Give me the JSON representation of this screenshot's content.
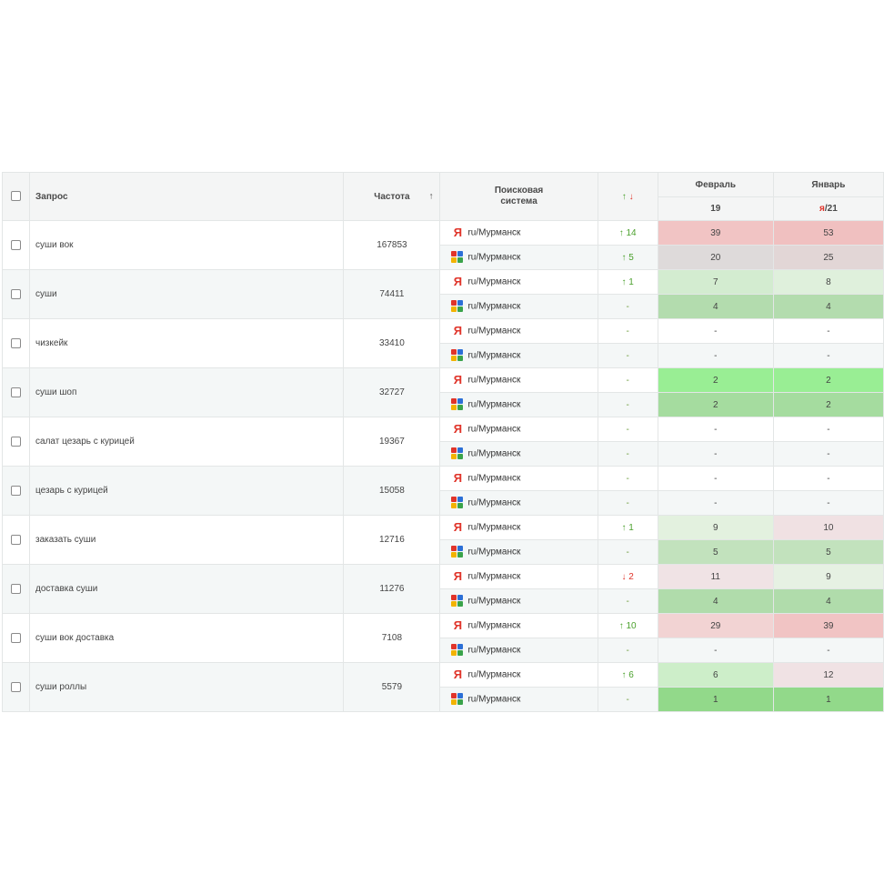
{
  "header": {
    "query": "Запрос",
    "frequency": "Частота",
    "sort_arrow": "↑",
    "search_engine_line1": "Поисковая",
    "search_engine_line2": "система",
    "dyn_up": "↑",
    "dyn_down": "↓",
    "month_feb": "Февраль",
    "month_jan": "Январь",
    "feb_day": "19",
    "jan_mark": "я",
    "jan_day": "/21"
  },
  "colors": {
    "positive": "#4aa02c",
    "negative": "#e0342a",
    "yandex": "#e0342a"
  },
  "rows": [
    {
      "query": "суши вок",
      "freq": "167853",
      "engines": [
        {
          "logo": "yandex-icon",
          "region": "ru/Мурманск",
          "dir": "up",
          "change": "14",
          "feb": "39",
          "jan": "53",
          "feb_bg": "#f1c4c4",
          "jan_bg": "#f0c0c0"
        },
        {
          "logo": "google-icon",
          "region": "ru/Мурманск",
          "dir": "up",
          "change": "5",
          "feb": "20",
          "jan": "25",
          "feb_bg": "#dedada",
          "jan_bg": "#e2d6d6"
        }
      ]
    },
    {
      "query": "суши",
      "freq": "74411",
      "engines": [
        {
          "logo": "yandex-icon",
          "region": "ru/Мурманск",
          "dir": "up",
          "change": "1",
          "feb": "7",
          "jan": "8",
          "feb_bg": "#d3ecd0",
          "jan_bg": "#dff0dc"
        },
        {
          "logo": "google-icon",
          "region": "ru/Мурманск",
          "dir": "none",
          "change": "-",
          "feb": "4",
          "jan": "4",
          "feb_bg": "#b3dcae",
          "jan_bg": "#b3dcae"
        }
      ]
    },
    {
      "query": "чизкейк",
      "freq": "33410",
      "engines": [
        {
          "logo": "yandex-icon",
          "region": "ru/Мурманск",
          "dir": "none",
          "change": "-",
          "feb": "-",
          "jan": "-",
          "feb_bg": "",
          "jan_bg": ""
        },
        {
          "logo": "google-icon",
          "region": "ru/Мурманск",
          "dir": "none",
          "change": "-",
          "feb": "-",
          "jan": "-",
          "feb_bg": "",
          "jan_bg": ""
        }
      ]
    },
    {
      "query": "суши шоп",
      "freq": "32727",
      "engines": [
        {
          "logo": "yandex-icon",
          "region": "ru/Мурманск",
          "dir": "none",
          "change": "-",
          "feb": "2",
          "jan": "2",
          "feb_bg": "#99ee94",
          "jan_bg": "#99ee94"
        },
        {
          "logo": "google-icon",
          "region": "ru/Мурманск",
          "dir": "none",
          "change": "-",
          "feb": "2",
          "jan": "2",
          "feb_bg": "#a5dc9f",
          "jan_bg": "#a5dc9f"
        }
      ]
    },
    {
      "query": "салат цезарь с курицей",
      "freq": "19367",
      "engines": [
        {
          "logo": "yandex-icon",
          "region": "ru/Мурманск",
          "dir": "none",
          "change": "-",
          "feb": "-",
          "jan": "-",
          "feb_bg": "",
          "jan_bg": ""
        },
        {
          "logo": "google-icon",
          "region": "ru/Мурманск",
          "dir": "none",
          "change": "-",
          "feb": "-",
          "jan": "-",
          "feb_bg": "",
          "jan_bg": ""
        }
      ]
    },
    {
      "query": "цезарь с курицей",
      "freq": "15058",
      "engines": [
        {
          "logo": "yandex-icon",
          "region": "ru/Мурманск",
          "dir": "none",
          "change": "-",
          "feb": "-",
          "jan": "-",
          "feb_bg": "",
          "jan_bg": ""
        },
        {
          "logo": "google-icon",
          "region": "ru/Мурманск",
          "dir": "none",
          "change": "-",
          "feb": "-",
          "jan": "-",
          "feb_bg": "",
          "jan_bg": ""
        }
      ]
    },
    {
      "query": "заказать суши",
      "freq": "12716",
      "engines": [
        {
          "logo": "yandex-icon",
          "region": "ru/Мурманск",
          "dir": "up",
          "change": "1",
          "feb": "9",
          "jan": "10",
          "feb_bg": "#e3f1df",
          "jan_bg": "#f0e1e3"
        },
        {
          "logo": "google-icon",
          "region": "ru/Мурманск",
          "dir": "none",
          "change": "-",
          "feb": "5",
          "jan": "5",
          "feb_bg": "#c2e2bd",
          "jan_bg": "#c2e2bd"
        }
      ]
    },
    {
      "query": "доставка суши",
      "freq": "11276",
      "engines": [
        {
          "logo": "yandex-icon",
          "region": "ru/Мурманск",
          "dir": "down",
          "change": "2",
          "feb": "11",
          "jan": "9",
          "feb_bg": "#f0e3e5",
          "jan_bg": "#e6f1e3"
        },
        {
          "logo": "google-icon",
          "region": "ru/Мурманск",
          "dir": "none",
          "change": "-",
          "feb": "4",
          "jan": "4",
          "feb_bg": "#b0dcab",
          "jan_bg": "#b0dcab"
        }
      ]
    },
    {
      "query": "суши вок доставка",
      "freq": "7108",
      "engines": [
        {
          "logo": "yandex-icon",
          "region": "ru/Мурманск",
          "dir": "up",
          "change": "10",
          "feb": "29",
          "jan": "39",
          "feb_bg": "#f2d3d3",
          "jan_bg": "#f1c4c4"
        },
        {
          "logo": "google-icon",
          "region": "ru/Мурманск",
          "dir": "none",
          "change": "-",
          "feb": "-",
          "jan": "-",
          "feb_bg": "",
          "jan_bg": ""
        }
      ]
    },
    {
      "query": "суши роллы",
      "freq": "5579",
      "engines": [
        {
          "logo": "yandex-icon",
          "region": "ru/Мурманск",
          "dir": "up",
          "change": "6",
          "feb": "6",
          "jan": "12",
          "feb_bg": "#cdeec9",
          "jan_bg": "#f0e2e4"
        },
        {
          "logo": "google-icon",
          "region": "ru/Мурманск",
          "dir": "none",
          "change": "-",
          "feb": "1",
          "jan": "1",
          "feb_bg": "#92d98a",
          "jan_bg": "#92d98a"
        }
      ]
    }
  ]
}
